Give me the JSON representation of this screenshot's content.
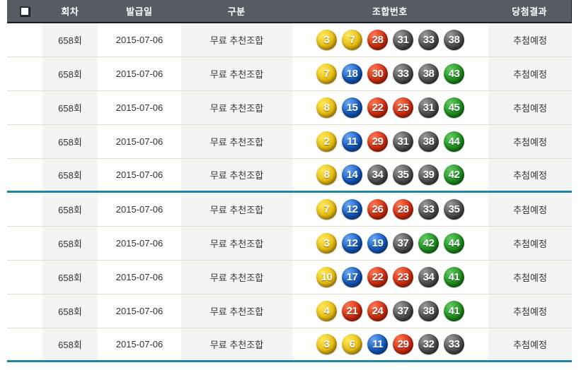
{
  "header": {
    "columns": [
      "회차",
      "발급일",
      "구분",
      "조합번호",
      "당첨결과"
    ]
  },
  "table": {
    "rows": [
      {
        "round": "658회",
        "issue_date": "2015-07-06",
        "category": "무료 추천조합",
        "numbers": [
          3,
          7,
          28,
          31,
          33,
          38
        ],
        "result": "추첨예정"
      },
      {
        "round": "658회",
        "issue_date": "2015-07-06",
        "category": "무료 추천조합",
        "numbers": [
          7,
          18,
          30,
          33,
          38,
          43
        ],
        "result": "추첨예정"
      },
      {
        "round": "658회",
        "issue_date": "2015-07-06",
        "category": "무료 추천조합",
        "numbers": [
          8,
          15,
          22,
          25,
          31,
          45
        ],
        "result": "추첨예정"
      },
      {
        "round": "658회",
        "issue_date": "2015-07-06",
        "category": "무료 추천조합",
        "numbers": [
          2,
          11,
          29,
          31,
          38,
          44
        ],
        "result": "추첨예정"
      },
      {
        "round": "658회",
        "issue_date": "2015-07-06",
        "category": "무료 추천조합",
        "numbers": [
          8,
          14,
          34,
          35,
          39,
          42
        ],
        "result": "추첨예정"
      },
      {
        "round": "658회",
        "issue_date": "2015-07-06",
        "category": "무료 추천조합",
        "numbers": [
          7,
          12,
          26,
          28,
          33,
          35
        ],
        "result": "추첨예정"
      },
      {
        "round": "658회",
        "issue_date": "2015-07-06",
        "category": "무료 추천조합",
        "numbers": [
          3,
          12,
          19,
          37,
          42,
          44
        ],
        "result": "추첨예정"
      },
      {
        "round": "658회",
        "issue_date": "2015-07-06",
        "category": "무료 추천조합",
        "numbers": [
          10,
          17,
          22,
          23,
          34,
          41
        ],
        "result": "추첨예정"
      },
      {
        "round": "658회",
        "issue_date": "2015-07-06",
        "category": "무료 추천조합",
        "numbers": [
          4,
          21,
          24,
          37,
          38,
          41
        ],
        "result": "추첨예정"
      },
      {
        "round": "658회",
        "issue_date": "2015-07-06",
        "category": "무료 추천조합",
        "numbers": [
          3,
          6,
          11,
          29,
          32,
          33
        ],
        "result": "추첨예정"
      }
    ]
  },
  "ball_color_groups": {
    "1-10": "#e8bd12",
    "11-20": "#1257bd",
    "21-30": "#cf2c10",
    "31-40": "#4e4e4e",
    "41-45": "#1e8f1e"
  },
  "colors": {
    "header_bg": "#575c64",
    "header_border": "#1c1d1f",
    "row_divider": "#e9ddcc",
    "group_divider": "#1e87a5",
    "shaded_column_bg": "#f4f4f4",
    "text": "#333333"
  }
}
